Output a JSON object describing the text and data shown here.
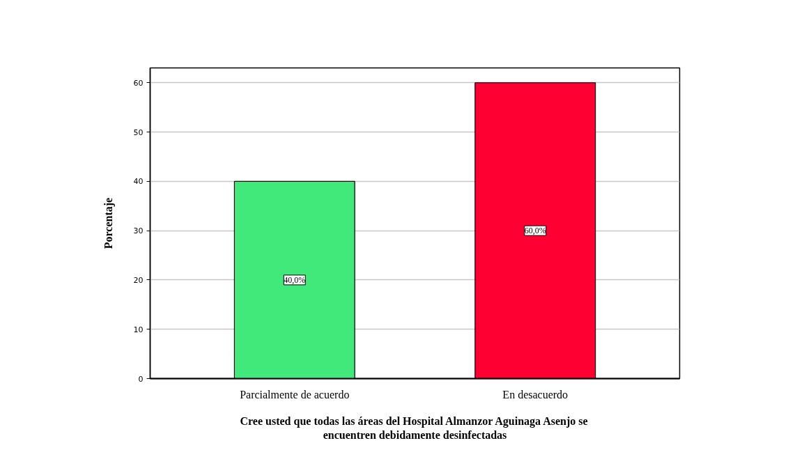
{
  "chart_data": {
    "type": "bar",
    "xlabel": "Cree usted que todas las áreas del Hospital Almanzor Aguinaga Asenjo se encuentren debidamente desinfectadas",
    "ylabel": "Porcentaje",
    "categories": [
      "Parcialmente de acuerdo",
      "En desacuerdo"
    ],
    "values": [
      40,
      60
    ],
    "colors": [
      "#40e97a",
      "#ff0033"
    ],
    "value_labels": [
      "40,0%",
      "60,0%"
    ],
    "ylim": [
      0,
      63
    ],
    "yticks": [
      0,
      10,
      20,
      30,
      40,
      50,
      60
    ],
    "grid": "y"
  }
}
